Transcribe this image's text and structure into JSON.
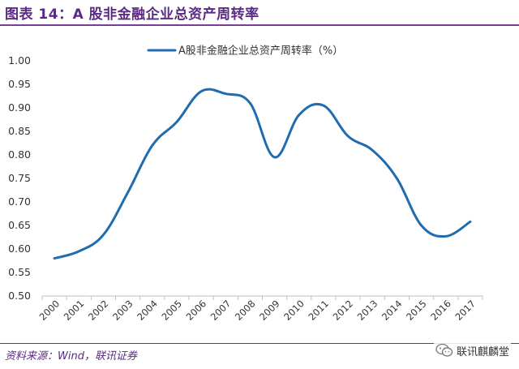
{
  "header": {
    "title": "图表 14：A 股非金融企业总资产周转率"
  },
  "chart_data": {
    "type": "line",
    "title": "",
    "xlabel": "",
    "ylabel": "",
    "categories": [
      "2000",
      "2001",
      "2002",
      "2003",
      "2004",
      "2005",
      "2006",
      "2007",
      "2008",
      "2009",
      "2010",
      "2011",
      "2012",
      "2013",
      "2014",
      "2015",
      "2016",
      "2017"
    ],
    "series": [
      {
        "name": "A股非金融企业总资产周转率（%）",
        "color": "#1f6cb0",
        "values": [
          0.58,
          0.595,
          0.63,
          0.72,
          0.82,
          0.87,
          0.935,
          0.93,
          0.91,
          0.795,
          0.885,
          0.905,
          0.84,
          0.81,
          0.75,
          0.65,
          0.627,
          0.658
        ]
      }
    ],
    "ylim": [
      0.5,
      1.0
    ],
    "yticks": [
      "0.50",
      "0.55",
      "0.60",
      "0.65",
      "0.70",
      "0.75",
      "0.80",
      "0.85",
      "0.90",
      "0.95",
      "1.00"
    ],
    "grid": false,
    "legend_position": "top-center"
  },
  "footer": {
    "source": "资料来源：Wind，联讯证券",
    "watermark": "联讯麒麟堂",
    "watermark_icon": "wechat-icon"
  }
}
